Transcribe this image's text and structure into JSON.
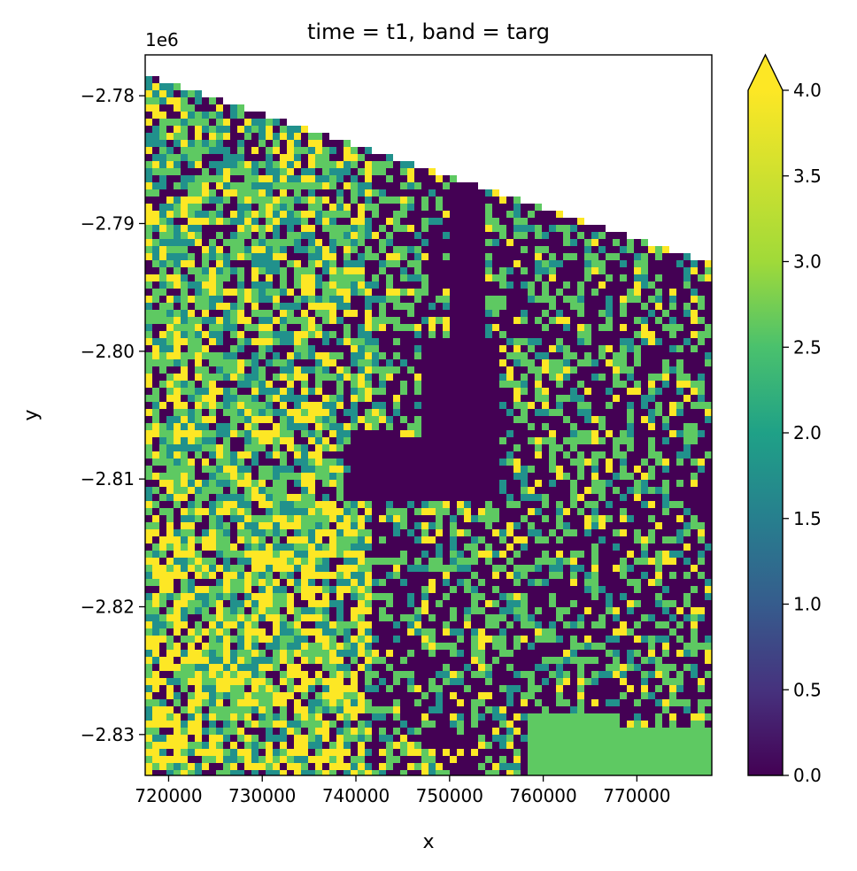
{
  "chart_data": {
    "type": "heatmap",
    "title": "time = t1, band = targ",
    "xlabel": "x",
    "ylabel": "y",
    "y_offset_label": "1e6",
    "xlim": [
      717500,
      778000
    ],
    "ylim": [
      -2.8332,
      -2.7768
    ],
    "x_ticks": [
      720000,
      730000,
      740000,
      750000,
      760000,
      770000
    ],
    "x_tick_labels": [
      "720000",
      "730000",
      "740000",
      "750000",
      "760000",
      "770000"
    ],
    "y_ticks": [
      -2.78,
      -2.79,
      -2.8,
      -2.81,
      -2.82,
      -2.83
    ],
    "y_tick_labels": [
      "−2.78",
      "−2.79",
      "−2.80",
      "−2.81",
      "−2.82",
      "−2.83"
    ],
    "colorbar": {
      "colormap": "viridis",
      "range": [
        0.0,
        4.0
      ],
      "extend": "max",
      "ticks": [
        0.0,
        0.5,
        1.0,
        1.5,
        2.0,
        2.5,
        3.0,
        3.5,
        4.0
      ],
      "tick_labels": [
        "0.0",
        "0.5",
        "1.0",
        "1.5",
        "2.0",
        "2.5",
        "3.0",
        "3.5",
        "4.0"
      ]
    },
    "values_present": [
      0,
      2,
      3,
      4
    ]
  },
  "colors": {
    "class_0": "#440154",
    "class_2": "#21918c",
    "class_3": "#5ec962",
    "class_4": "#fde725"
  }
}
